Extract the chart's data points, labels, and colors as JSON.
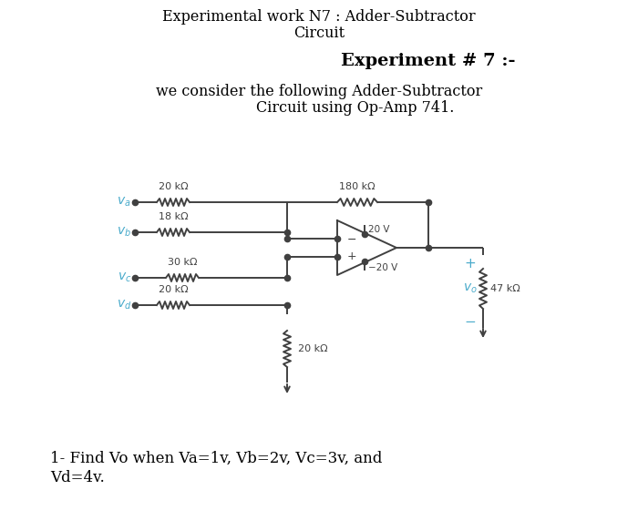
{
  "title1": "Experimental work N7 : Adder-Subtractor",
  "title2": "Circuit",
  "title3": "Experiment # 7 :-",
  "subtitle1": "we consider the following Adder-Subtractor",
  "subtitle2": "Circuit using Op-Amp 741.",
  "footer1": "1- Find Vo when Va=1v, Vb=2v, Vc=3v, and",
  "footer2": "Vd=4v.",
  "bg_color": "#ffffff",
  "text_color": "#000000",
  "cyan_color": "#4aabcb",
  "circuit_color": "#404040",
  "figsize": [
    7.0,
    5.83
  ],
  "dpi": 100,
  "va_label": "$v_a$",
  "vb_label": "$v_b$",
  "vc_label": "$v_c$",
  "vd_label": "$v_d$",
  "vo_label": "$v_o$",
  "r1_label": "20 kΩ",
  "r2_label": "18 kΩ",
  "r3_label": "30 kΩ",
  "r4_label": "20 kΩ",
  "rfb_label": "180 kΩ",
  "rout_label": "47 kΩ",
  "rgnd_label": "20 kΩ",
  "v_plus_label": "20 V",
  "v_minus_label": "−20 V"
}
